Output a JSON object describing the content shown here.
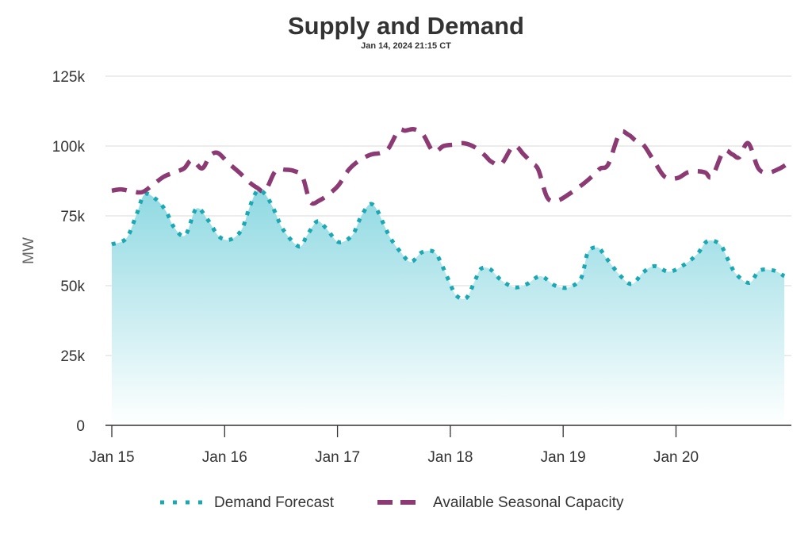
{
  "chart_data": {
    "type": "area",
    "title": "Supply and Demand",
    "subtitle": "Jan 14, 2024 21:15 CT",
    "xlabel": "",
    "ylabel": "MW",
    "ylim": [
      0,
      125000
    ],
    "yticks": [
      0,
      25000,
      50000,
      75000,
      100000,
      125000
    ],
    "ytick_labels": [
      "0",
      "25k",
      "50k",
      "75k",
      "100k",
      "125k"
    ],
    "xlim_days": [
      0,
      6.03
    ],
    "xticks_days": [
      0,
      1,
      2,
      3,
      4,
      5
    ],
    "xtick_labels": [
      "Jan 15",
      "Jan 16",
      "Jan 17",
      "Jan 18",
      "Jan 19",
      "Jan 20"
    ],
    "grid": true,
    "legend_position": "bottom-center",
    "series": [
      {
        "name": "Demand Forecast",
        "style": "dotted-area",
        "color": "#1aa8b3",
        "x_days": [
          0,
          0.13,
          0.22,
          0.29,
          0.39,
          0.48,
          0.55,
          0.65,
          0.75,
          0.85,
          0.95,
          1.05,
          1.15,
          1.22,
          1.29,
          1.36,
          1.43,
          1.52,
          1.66,
          1.73,
          1.82,
          1.9,
          2.01,
          2.13,
          2.2,
          2.28,
          2.34,
          2.41,
          2.47,
          2.56,
          2.65,
          2.75,
          2.86,
          2.93,
          2.99,
          3.05,
          3.14,
          3.22,
          3.27,
          3.35,
          3.45,
          3.57,
          3.68,
          3.8,
          3.93,
          4.05,
          4.16,
          4.22,
          4.31,
          4.38,
          4.51,
          4.61,
          4.71,
          4.81,
          4.94,
          5.08,
          5.19,
          5.28,
          5.39,
          5.46,
          5.53,
          5.65,
          5.74,
          5.87,
          5.96
        ],
        "values": [
          64800,
          67000,
          75600,
          82700,
          81000,
          76700,
          71000,
          68000,
          77600,
          73600,
          67600,
          66500,
          70000,
          78000,
          84000,
          82700,
          77800,
          70000,
          64000,
          68000,
          73000,
          70500,
          65600,
          68000,
          74000,
          79000,
          77800,
          72000,
          67000,
          62000,
          58500,
          62000,
          62000,
          57000,
          51500,
          46600,
          45500,
          52000,
          56000,
          56000,
          52000,
          49400,
          50600,
          53400,
          50000,
          49400,
          52800,
          62000,
          63600,
          60000,
          53400,
          50600,
          54800,
          57000,
          55000,
          57700,
          61400,
          66000,
          64800,
          59400,
          54300,
          51000,
          55400,
          55400,
          53400
        ]
      },
      {
        "name": "Available Seasonal Capacity",
        "style": "dashed-line",
        "color": "#8b3a73",
        "x_days": [
          0,
          0.08,
          0.17,
          0.27,
          0.36,
          0.46,
          0.55,
          0.64,
          0.71,
          0.8,
          0.87,
          0.94,
          1.03,
          1.13,
          1.22,
          1.29,
          1.36,
          1.45,
          1.54,
          1.62,
          1.69,
          1.76,
          1.84,
          1.93,
          2.01,
          2.1,
          2.2,
          2.3,
          2.38,
          2.45,
          2.54,
          2.6,
          2.68,
          2.76,
          2.85,
          2.94,
          3.03,
          3.12,
          3.22,
          3.31,
          3.36,
          3.45,
          3.56,
          3.65,
          3.72,
          3.78,
          3.86,
          3.95,
          4.06,
          4.18,
          4.28,
          4.33,
          4.4,
          4.5,
          4.58,
          4.64,
          4.71,
          4.8,
          4.9,
          5.01,
          5.1,
          5.18,
          5.26,
          5.32,
          5.42,
          5.5,
          5.56,
          5.64,
          5.73,
          5.82,
          5.92,
          6.0
        ],
        "values": [
          84000,
          84500,
          83800,
          83500,
          86000,
          89000,
          90500,
          92000,
          95000,
          92000,
          96500,
          97500,
          94000,
          90500,
          87000,
          85000,
          84000,
          91000,
          91500,
          91000,
          89000,
          80000,
          80500,
          83000,
          86000,
          91500,
          95000,
          97000,
          97500,
          99000,
          105500,
          105500,
          106000,
          104000,
          98000,
          100000,
          100500,
          101000,
          99500,
          96500,
          94500,
          93500,
          100000,
          97000,
          94000,
          91500,
          81500,
          80500,
          83000,
          86500,
          90000,
          92000,
          93500,
          104500,
          104000,
          102000,
          100500,
          95000,
          89000,
          88500,
          90500,
          91000,
          90500,
          89000,
          98000,
          97000,
          96000,
          101000,
          92000,
          90500,
          92000,
          94000
        ]
      }
    ]
  }
}
